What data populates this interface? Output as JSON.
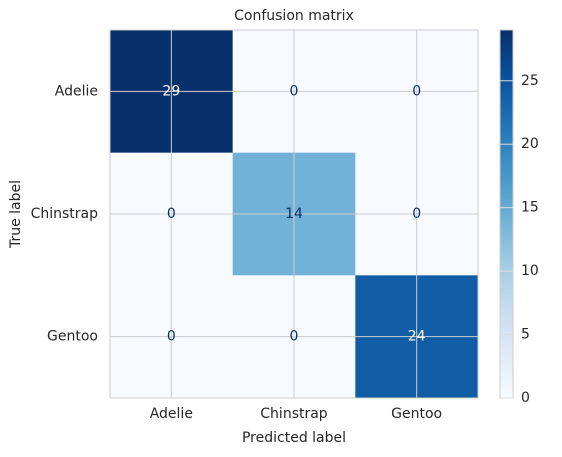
{
  "chart_data": {
    "type": "heatmap",
    "title": "Confusion matrix",
    "x_label": "Predicted label",
    "y_label": "True label",
    "x_categories": [
      "Adelie",
      "Chinstrap",
      "Gentoo"
    ],
    "y_categories": [
      "Adelie",
      "Chinstrap",
      "Gentoo"
    ],
    "values": [
      [
        29,
        0,
        0
      ],
      [
        0,
        14,
        0
      ],
      [
        0,
        0,
        24
      ]
    ],
    "colormap": "Blues",
    "zlim": [
      0,
      29
    ],
    "colorbar_ticks": [
      0,
      5,
      10,
      15,
      20,
      25
    ],
    "grid": true
  }
}
